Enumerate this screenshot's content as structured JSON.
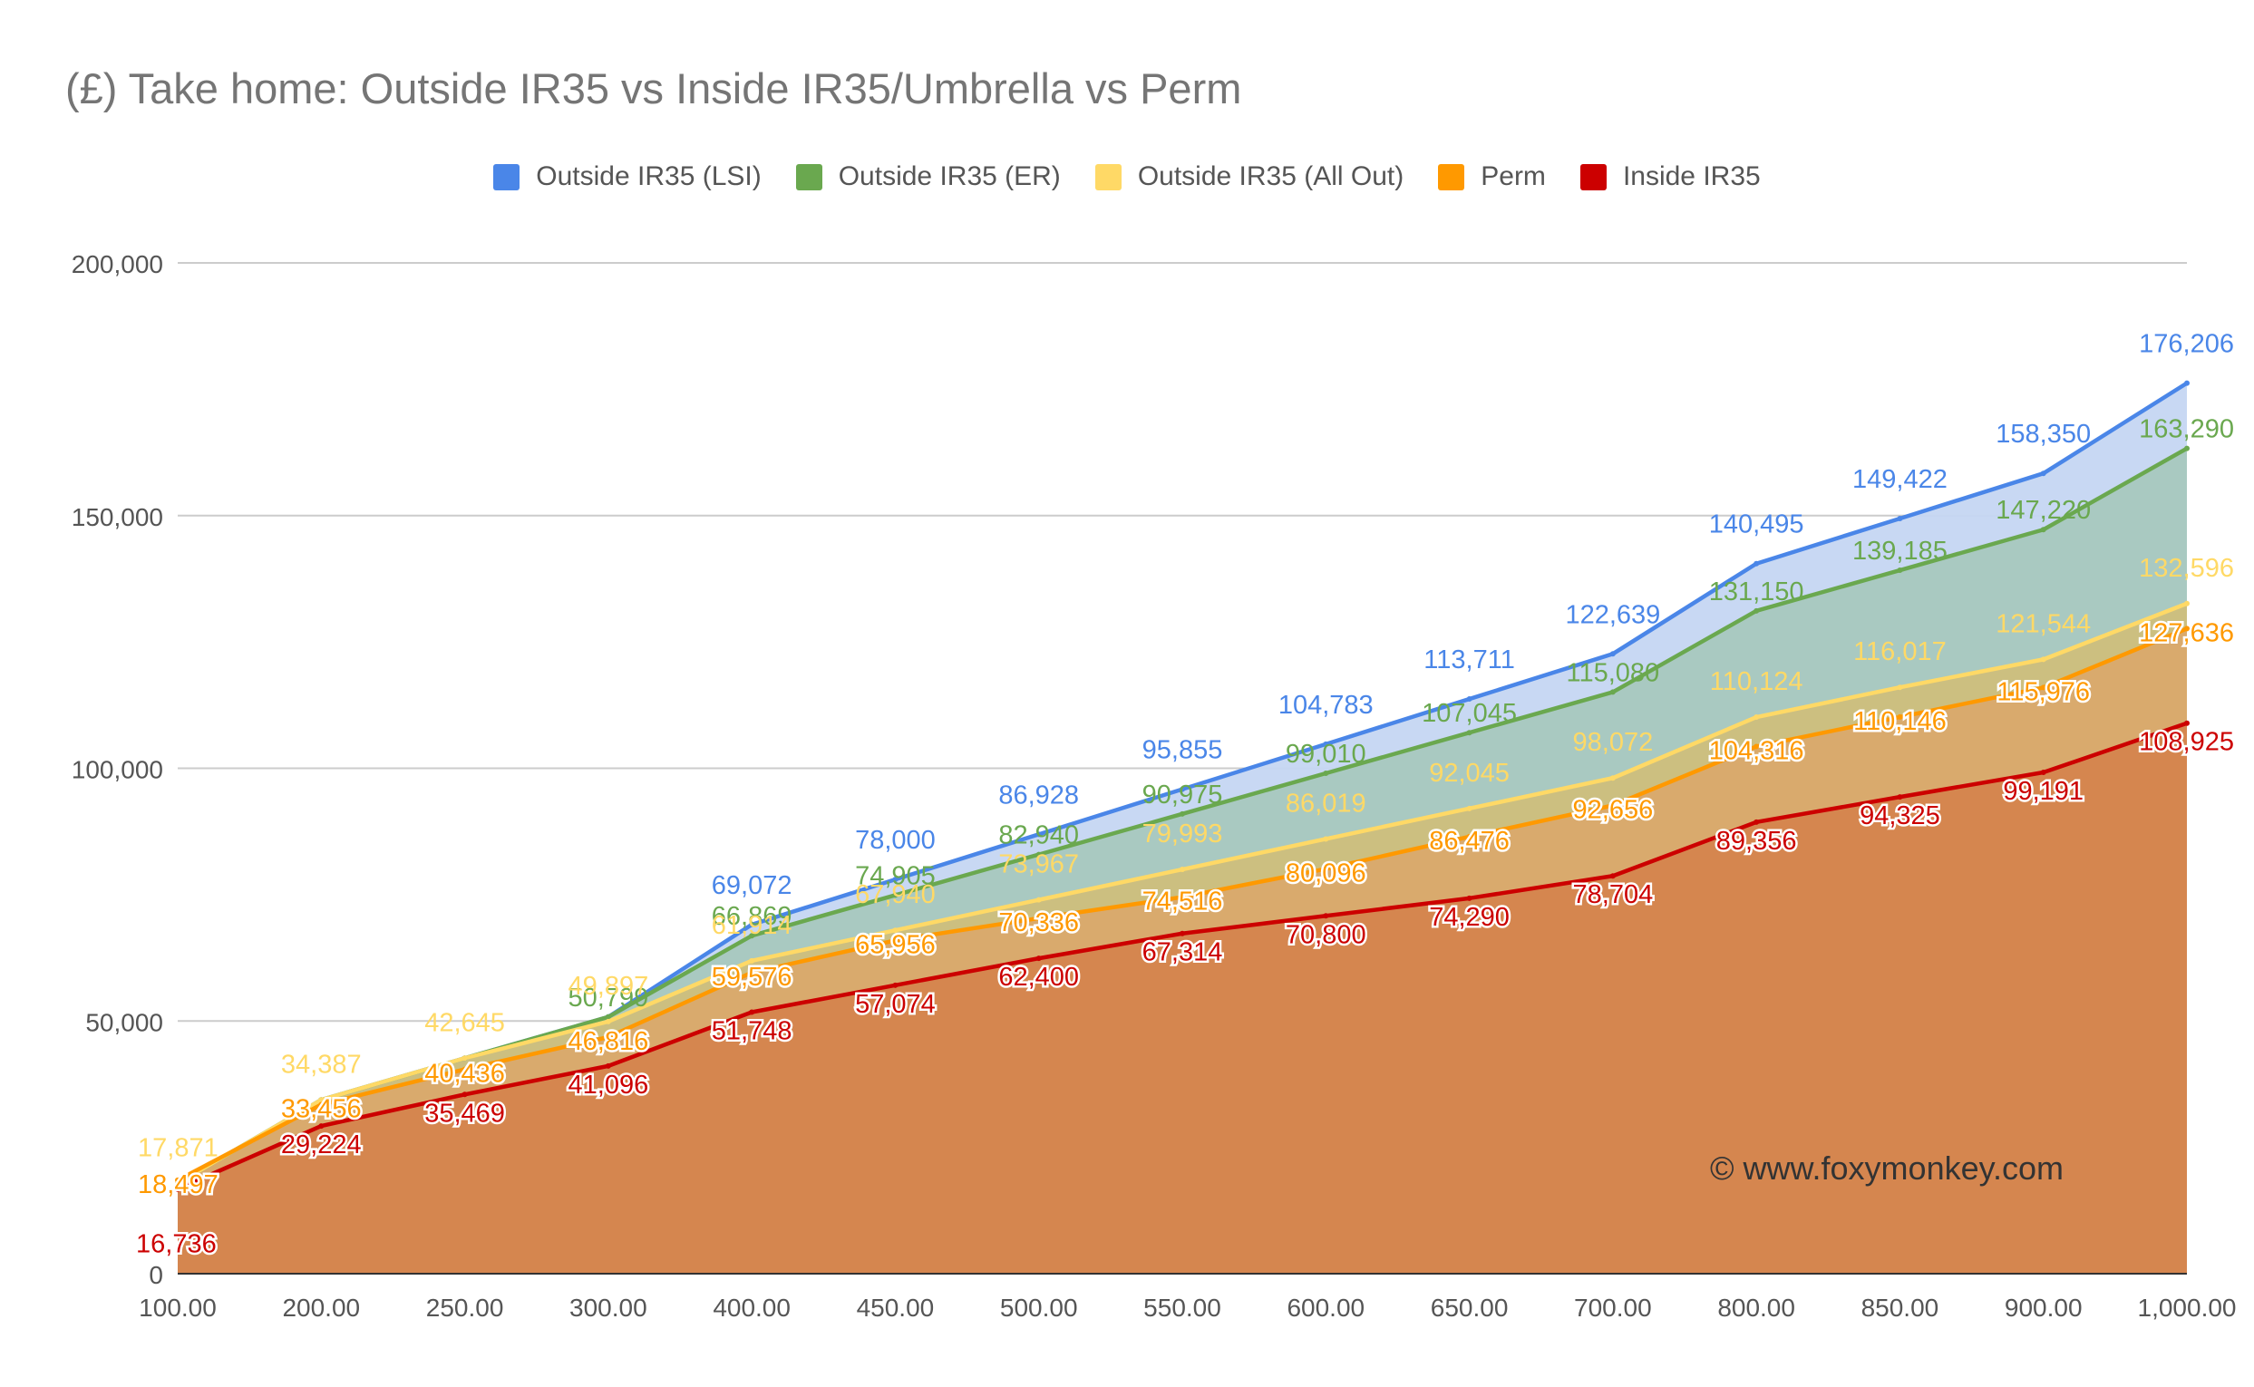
{
  "chart_data": {
    "type": "area",
    "title": "(£) Take home: Outside IR35 vs Inside IR35/Umbrella vs Perm",
    "xlabel": "",
    "ylabel": "",
    "categories": [
      "100.00",
      "200.00",
      "250.00",
      "300.00",
      "400.00",
      "450.00",
      "500.00",
      "550.00",
      "600.00",
      "650.00",
      "700.00",
      "800.00",
      "850.00",
      "900.00",
      "1,000.00"
    ],
    "ylim": [
      0,
      200000
    ],
    "yticks": [
      0,
      50000,
      100000,
      150000,
      200000
    ],
    "ytick_labels": [
      "0",
      "50,000",
      "100,000",
      "150,000",
      "200,000"
    ],
    "grid": true,
    "legend_position": "top",
    "series": [
      {
        "name": "Outside IR35 (LSI)",
        "color": "#4a86e8",
        "fill": "#c5d6f2",
        "values": [
          17871,
          34387,
          42645,
          50799,
          69072,
          78000,
          86928,
          95855,
          104783,
          113711,
          122639,
          140495,
          149422,
          158350,
          176206
        ],
        "labels": [
          "",
          "",
          "",
          "",
          "69,072",
          "78,000",
          "86,928",
          "95,855",
          "104,783",
          "113,711",
          "122,639",
          "140,495",
          "149,422",
          "158,350",
          "176,206"
        ]
      },
      {
        "name": "Outside IR35 (ER)",
        "color": "#6aa84f",
        "fill": "#a8c8be",
        "values": [
          17871,
          34387,
          42645,
          50799,
          66869,
          74905,
          82940,
          90975,
          99010,
          107045,
          115080,
          131150,
          139185,
          147220,
          163290
        ],
        "labels": [
          "",
          "",
          "",
          "50,799",
          "66,869",
          "74,905",
          "82,940",
          "90,975",
          "99,010",
          "107,045",
          "115,080",
          "131,150",
          "139,185",
          "147,220",
          "163,290"
        ]
      },
      {
        "name": "Outside IR35 (All Out)",
        "color": "#ffd966",
        "fill": "#cebf7c",
        "values": [
          17871,
          34387,
          42645,
          49897,
          61914,
          67940,
          73967,
          79993,
          86019,
          92045,
          98072,
          110124,
          116017,
          121544,
          132596
        ],
        "labels": [
          "17,871",
          "34,387",
          "42,645",
          "49,897",
          "61,914",
          "67,940",
          "73,967",
          "79,993",
          "86,019",
          "92,045",
          "98,072",
          "110,124",
          "116,017",
          "121,544",
          "132,596"
        ]
      },
      {
        "name": "Perm",
        "color": "#ff9900",
        "fill": "#d9a96c",
        "values": [
          18497,
          33456,
          40436,
          46816,
          59576,
          65956,
          70336,
          74516,
          80096,
          86476,
          92656,
          104316,
          110146,
          115976,
          127636
        ],
        "labels": [
          "18,497",
          "33,456",
          "40,436",
          "46,816",
          "59,576",
          "65,956",
          "70,336",
          "74,516",
          "80,096",
          "86,476",
          "92,656",
          "104,316",
          "110,146",
          "115,976",
          "127,636"
        ]
      },
      {
        "name": "Inside IR35",
        "color": "#cc0000",
        "fill": "#d5844e",
        "values": [
          16736,
          29224,
          35469,
          41096,
          51748,
          57074,
          62400,
          67314,
          70800,
          74290,
          78704,
          89356,
          94325,
          99191,
          108925
        ],
        "labels": [
          "16,736",
          "29,224",
          "35,469",
          "41,096",
          "51,748",
          "57,074",
          "62,400",
          "67,314",
          "70,800",
          "74,290",
          "78,704",
          "89,356",
          "94,325",
          "99,191",
          "108,925"
        ]
      }
    ]
  },
  "watermark": "© www.foxymonkey.com"
}
